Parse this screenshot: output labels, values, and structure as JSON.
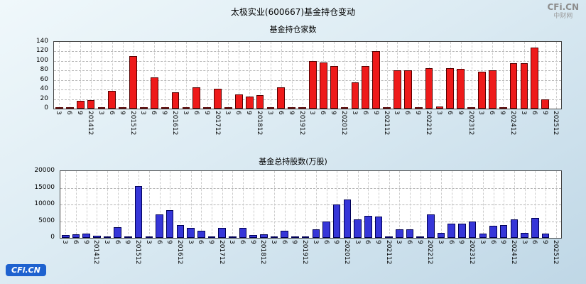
{
  "page": {
    "title": "太极实业(600667)基金持仓变动",
    "watermark": {
      "line1": "CFi.CN",
      "line2": "中财网"
    },
    "logo_text": "CFi.CN"
  },
  "chart_data": [
    {
      "type": "bar",
      "title": "基金持仓家数",
      "bar_color": "#ee1a1a",
      "bar_border": "#550000",
      "grid": true,
      "ylim": [
        0,
        140
      ],
      "yticks": [
        0,
        20,
        40,
        60,
        80,
        100,
        120,
        140
      ],
      "categories": [
        "3",
        "6",
        "9",
        "201412",
        "3",
        "6",
        "9",
        "201512",
        "3",
        "6",
        "9",
        "201612",
        "3",
        "6",
        "9",
        "201712",
        "3",
        "6",
        "9",
        "201812",
        "3",
        "6",
        "9",
        "201912",
        "3",
        "6",
        "9",
        "202012",
        "3",
        "6",
        "9",
        "202112",
        "3",
        "6",
        "9",
        "202212",
        "3",
        "6",
        "9",
        "202312",
        "3",
        "6",
        "9",
        "202412",
        "3",
        "6",
        "9",
        "202512"
      ],
      "values": [
        3,
        2,
        17,
        18,
        2,
        38,
        2,
        110,
        2,
        65,
        2,
        35,
        2,
        45,
        2,
        42,
        1,
        30,
        25,
        28,
        1,
        45,
        1,
        2,
        100,
        97,
        90,
        3,
        55,
        90,
        120,
        3,
        80,
        80,
        3,
        85,
        5,
        85,
        83,
        3,
        78,
        80,
        3,
        95,
        95,
        128,
        20,
        0
      ]
    },
    {
      "type": "bar",
      "title": "基金总持股数(万股)",
      "bar_color": "#3636d8",
      "bar_border": "#000055",
      "grid": true,
      "ylim": [
        0,
        20000
      ],
      "yticks": [
        0,
        5000,
        10000,
        15000,
        20000
      ],
      "categories": [
        "3",
        "6",
        "9",
        "201412",
        "3",
        "6",
        "9",
        "201512",
        "3",
        "6",
        "9",
        "201612",
        "3",
        "6",
        "9",
        "201712",
        "3",
        "6",
        "9",
        "201812",
        "3",
        "6",
        "9",
        "201912",
        "3",
        "6",
        "9",
        "202012",
        "3",
        "6",
        "9",
        "202112",
        "3",
        "6",
        "9",
        "202212",
        "3",
        "6",
        "9",
        "202312",
        "3",
        "6",
        "9",
        "202412",
        "3",
        "6",
        "9",
        "202512"
      ],
      "values": [
        900,
        1100,
        1300,
        700,
        400,
        3100,
        300,
        15600,
        300,
        7000,
        8400,
        3900,
        3000,
        2200,
        300,
        2900,
        100,
        3000,
        800,
        1000,
        100,
        2100,
        300,
        300,
        2500,
        4800,
        10000,
        11500,
        5600,
        6600,
        6300,
        400,
        2500,
        2500,
        400,
        7000,
        1500,
        4300,
        4300,
        4800,
        1200,
        3600,
        3800,
        5500,
        1500,
        6000,
        1200,
        0
      ]
    }
  ]
}
